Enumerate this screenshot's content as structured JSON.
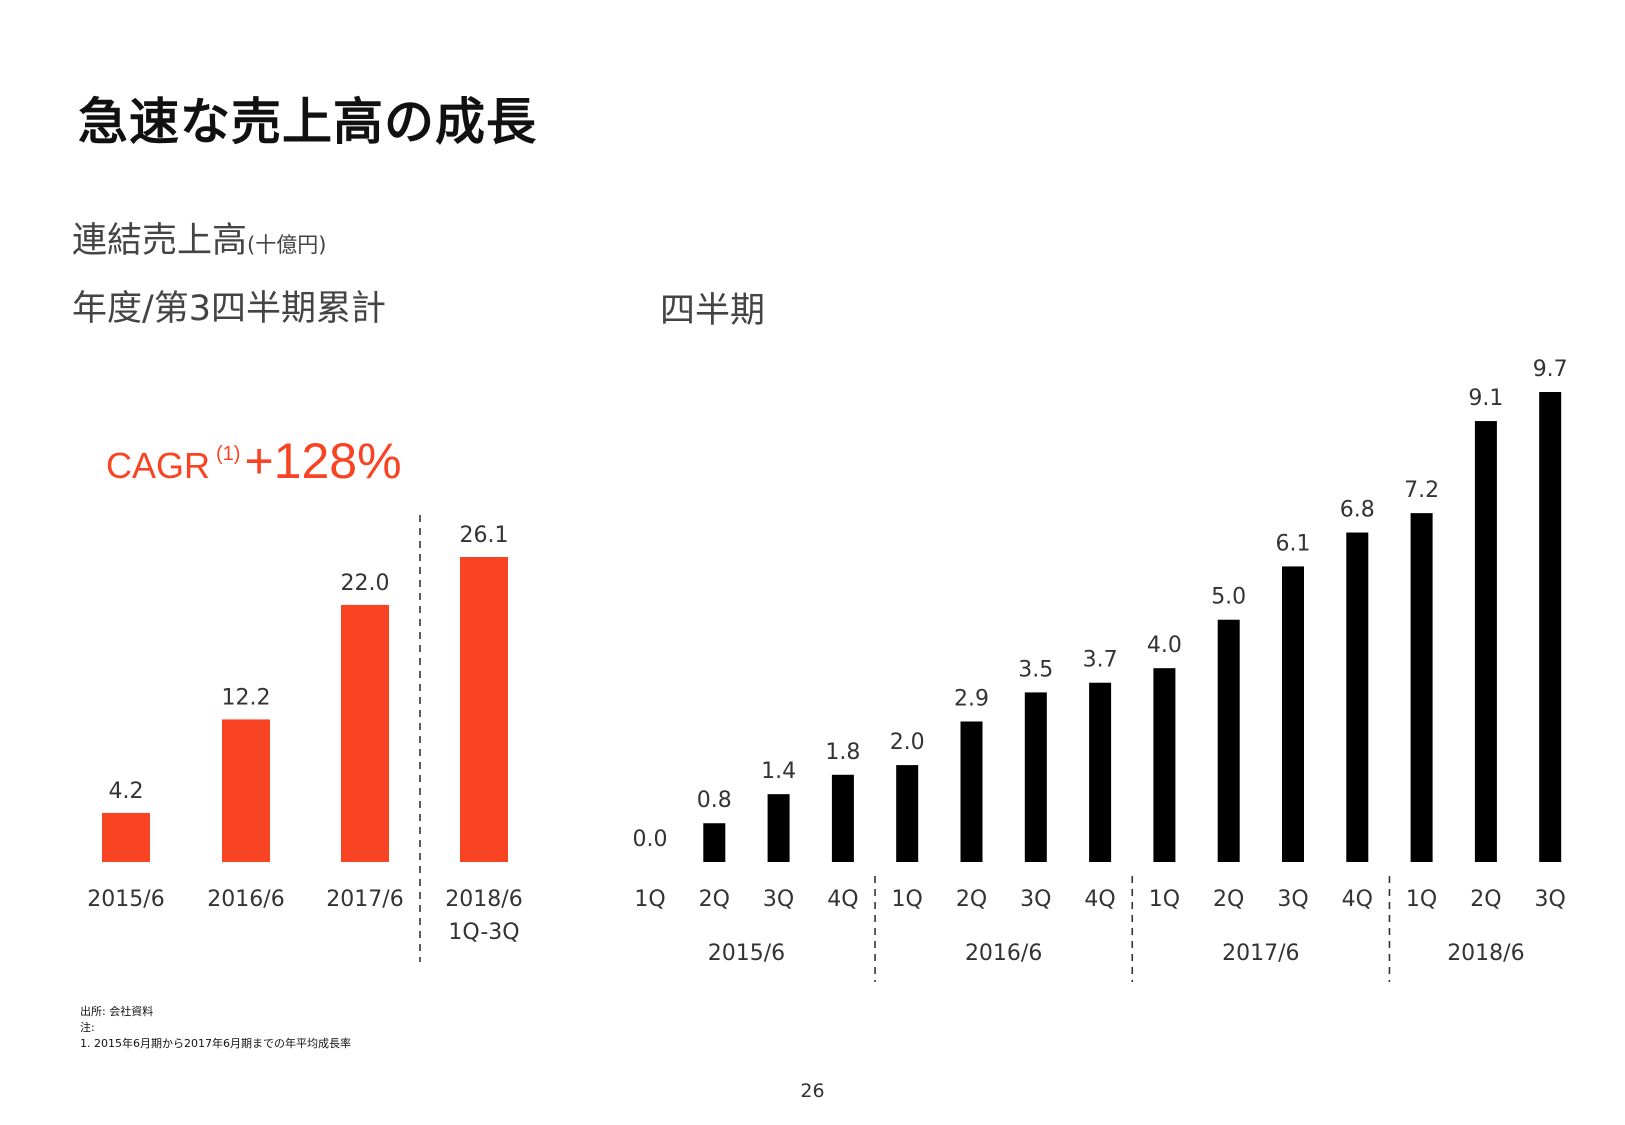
{
  "title": "急速な売上高の成長",
  "heading": {
    "main": "連結売上高",
    "unit": "(十億円)"
  },
  "annual_heading": "年度/第3四半期累計",
  "quarterly_heading": "四半期",
  "cagr": {
    "label": "CAGR",
    "note": "(1)",
    "value": "+128%"
  },
  "footnotes": {
    "source": "出所: 会社資料",
    "note_label": "注:",
    "note_1": "1. 2015年6月期から2017年6月期までの年平均成長率"
  },
  "page_number": "26",
  "colors": {
    "annual_bar": "#f84423",
    "quarterly_bar": "#000000",
    "cagr_text": "#f84423"
  },
  "chart_data": [
    {
      "type": "bar",
      "categories": [
        "2015/6",
        "2016/6",
        "2017/6",
        "2018/6\n1Q-3Q"
      ],
      "values": [
        4.2,
        12.2,
        22.0,
        26.1
      ],
      "value_labels": [
        "4.2",
        "12.2",
        "22.0",
        "26.1"
      ],
      "ylabel": "",
      "ylim": [
        0,
        30
      ],
      "grid": false
    },
    {
      "type": "bar",
      "categories": [
        "1Q",
        "2Q",
        "3Q",
        "4Q",
        "1Q",
        "2Q",
        "3Q",
        "4Q",
        "1Q",
        "2Q",
        "3Q",
        "4Q",
        "1Q",
        "2Q",
        "3Q"
      ],
      "groups": [
        {
          "label": "2015/6",
          "quarters": 4
        },
        {
          "label": "2016/6",
          "quarters": 4
        },
        {
          "label": "2017/6",
          "quarters": 4
        },
        {
          "label": "2018/6",
          "quarters": 3
        }
      ],
      "values": [
        0.0,
        0.8,
        1.4,
        1.8,
        2.0,
        2.9,
        3.5,
        3.7,
        4.0,
        5.0,
        6.1,
        6.8,
        7.2,
        9.1,
        9.7
      ],
      "value_labels": [
        "0.0",
        "0.8",
        "1.4",
        "1.8",
        "2.0",
        "2.9",
        "3.5",
        "3.7",
        "4.0",
        "5.0",
        "6.1",
        "6.8",
        "7.2",
        "9.1",
        "9.7"
      ],
      "ylabel": "",
      "ylim": [
        0,
        10
      ],
      "grid": false
    }
  ]
}
